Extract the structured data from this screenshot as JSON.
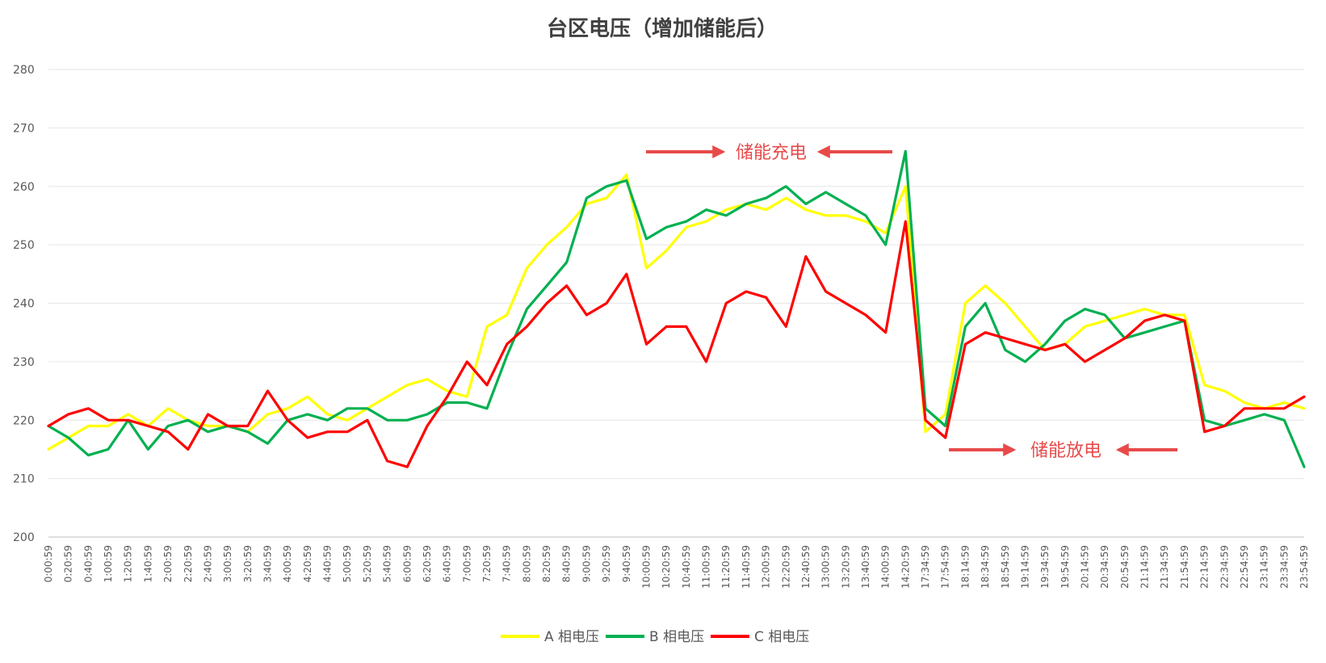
{
  "chart_data": {
    "type": "line",
    "title": "台区电压（增加储能后）",
    "xlabel": "",
    "ylabel": "",
    "ylim": [
      200,
      280
    ],
    "yticks": [
      200,
      210,
      220,
      230,
      240,
      250,
      260,
      270,
      280
    ],
    "grid": "horizontal",
    "legend_position": "bottom",
    "x_tick_labels": [
      "0:00:59",
      "0:20:59",
      "0:40:59",
      "1:00:59",
      "1:20:59",
      "1:40:59",
      "2:00:59",
      "2:20:59",
      "2:40:59",
      "3:00:59",
      "3:20:59",
      "3:40:59",
      "4:00:59",
      "4:20:59",
      "4:40:59",
      "5:00:59",
      "5:20:59",
      "5:40:59",
      "6:00:59",
      "6:20:59",
      "6:40:59",
      "7:00:59",
      "7:20:59",
      "7:40:59",
      "8:00:59",
      "8:20:59",
      "8:40:59",
      "9:00:59",
      "9:20:59",
      "9:40:59",
      "10:00:59",
      "10:20:59",
      "10:40:59",
      "11:00:59",
      "11:20:59",
      "11:40:59",
      "12:00:59",
      "12:20:59",
      "12:40:59",
      "13:00:59",
      "13:20:59",
      "13:40:59",
      "14:00:59",
      "14:20:59",
      "17:34:59",
      "17:54:59",
      "18:14:59",
      "18:34:59",
      "18:54:59",
      "19:14:59",
      "19:34:59",
      "19:54:59",
      "20:14:59",
      "20:34:59",
      "20:54:59",
      "21:14:59",
      "21:34:59",
      "21:54:59",
      "22:14:59",
      "22:34:59",
      "22:54:59",
      "23:14:59",
      "23:34:59",
      "23:54:59"
    ],
    "series": [
      {
        "name": "A 相电压",
        "color": "#ffff00",
        "values": [
          215,
          217,
          219,
          219,
          221,
          219,
          222,
          220,
          219,
          219,
          218,
          221,
          222,
          224,
          221,
          220,
          222,
          224,
          226,
          227,
          225,
          224,
          236,
          238,
          246,
          250,
          253,
          257,
          258,
          262,
          246,
          249,
          253,
          254,
          256,
          257,
          256,
          258,
          256,
          255,
          255,
          254,
          252,
          260,
          218,
          221,
          240,
          243,
          240,
          236,
          232,
          233,
          236,
          237,
          238,
          239,
          238,
          238,
          226,
          225,
          223,
          222,
          223,
          222
        ]
      },
      {
        "name": "B 相电压",
        "color": "#00b050",
        "values": [
          219,
          217,
          214,
          215,
          220,
          215,
          219,
          220,
          218,
          219,
          218,
          216,
          220,
          221,
          220,
          222,
          222,
          220,
          220,
          221,
          223,
          223,
          222,
          231,
          239,
          243,
          247,
          258,
          260,
          261,
          251,
          253,
          254,
          256,
          255,
          257,
          258,
          260,
          257,
          259,
          257,
          255,
          250,
          266,
          222,
          219,
          236,
          240,
          232,
          230,
          233,
          237,
          239,
          238,
          234,
          235,
          236,
          237,
          220,
          219,
          220,
          221,
          220,
          212
        ]
      },
      {
        "name": "C 相电压",
        "color": "#ff0000",
        "values": [
          219,
          221,
          222,
          220,
          220,
          219,
          218,
          215,
          221,
          219,
          219,
          225,
          220,
          217,
          218,
          218,
          220,
          213,
          212,
          219,
          224,
          230,
          226,
          233,
          236,
          240,
          243,
          238,
          240,
          245,
          233,
          236,
          236,
          230,
          240,
          242,
          241,
          236,
          248,
          242,
          240,
          238,
          235,
          254,
          220,
          217,
          233,
          235,
          234,
          233,
          232,
          233,
          230,
          232,
          234,
          237,
          238,
          237,
          218,
          219,
          222,
          222,
          222,
          224
        ]
      }
    ],
    "annotations": [
      {
        "text": "储能充电",
        "color": "#e84a4a"
      },
      {
        "text": "储能放电",
        "color": "#e84a4a"
      }
    ]
  }
}
